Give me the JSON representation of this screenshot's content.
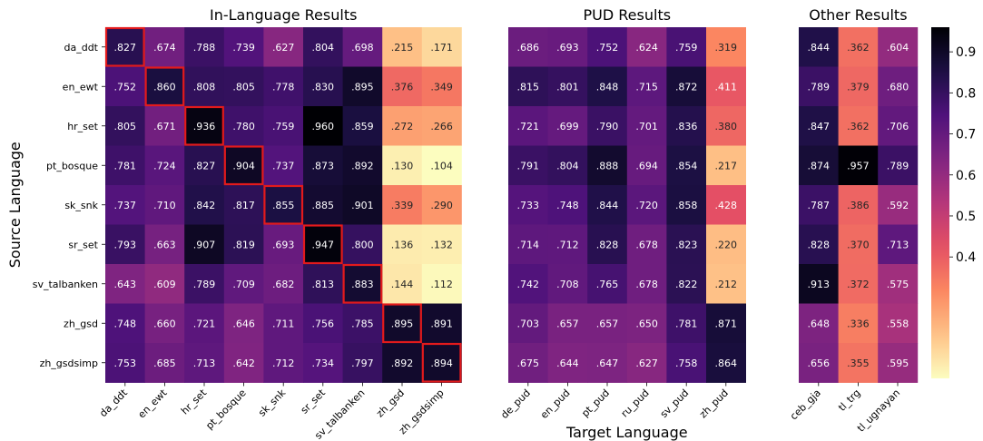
{
  "chart_data": {
    "type": "heatmap",
    "xlabel": "Target Language",
    "ylabel": "Source Language",
    "colormap": "magma_r",
    "value_range": [
      0.104,
      0.96
    ],
    "rows": [
      "da_ddt",
      "en_ewt",
      "hr_set",
      "pt_bosque",
      "sk_snk",
      "sr_set",
      "sv_talbanken",
      "zh_gsd",
      "zh_gsdsimp"
    ],
    "panels": [
      {
        "title": "In-Language Results",
        "columns": [
          "da_ddt",
          "en_ewt",
          "hr_set",
          "pt_bosque",
          "sk_snk",
          "sr_set",
          "sv_talbanken",
          "zh_gsd",
          "zh_gsdsimp"
        ],
        "values": [
          [
            0.827,
            0.674,
            0.788,
            0.739,
            0.627,
            0.804,
            0.698,
            0.215,
            0.171
          ],
          [
            0.752,
            0.86,
            0.808,
            0.805,
            0.778,
            0.83,
            0.895,
            0.376,
            0.349
          ],
          [
            0.805,
            0.671,
            0.936,
            0.78,
            0.759,
            0.96,
            0.859,
            0.272,
            0.266
          ],
          [
            0.781,
            0.724,
            0.827,
            0.904,
            0.737,
            0.873,
            0.892,
            0.13,
            0.104
          ],
          [
            0.737,
            0.71,
            0.842,
            0.817,
            0.855,
            0.885,
            0.901,
            0.339,
            0.29
          ],
          [
            0.793,
            0.663,
            0.907,
            0.819,
            0.693,
            0.947,
            0.8,
            0.136,
            0.132
          ],
          [
            0.643,
            0.609,
            0.789,
            0.709,
            0.682,
            0.813,
            0.883,
            0.144,
            0.112
          ],
          [
            0.748,
            0.66,
            0.721,
            0.646,
            0.711,
            0.756,
            0.785,
            0.895,
            0.891
          ],
          [
            0.753,
            0.685,
            0.713,
            0.642,
            0.712,
            0.734,
            0.797,
            0.892,
            0.894
          ]
        ],
        "labels": [
          [
            ".827",
            ".674",
            ".788",
            ".739",
            ".627",
            ".804",
            ".698",
            ".215",
            ".171"
          ],
          [
            ".752",
            ".860",
            ".808",
            ".805",
            ".778",
            ".830",
            ".895",
            ".376",
            ".349"
          ],
          [
            ".805",
            ".671",
            ".936",
            ".780",
            ".759",
            ".960",
            ".859",
            ".272",
            ".266"
          ],
          [
            ".781",
            ".724",
            ".827",
            ".904",
            ".737",
            ".873",
            ".892",
            ".130",
            ".104"
          ],
          [
            ".737",
            ".710",
            ".842",
            ".817",
            ".855",
            ".885",
            ".901",
            ".339",
            ".290"
          ],
          [
            ".793",
            ".663",
            ".907",
            ".819",
            ".693",
            ".947",
            ".800",
            ".136",
            ".132"
          ],
          [
            ".643",
            ".609",
            ".789",
            ".709",
            ".682",
            ".813",
            ".883",
            ".144",
            ".112"
          ],
          [
            ".748",
            ".660",
            ".721",
            ".646",
            ".711",
            ".756",
            ".785",
            ".895",
            ".891"
          ],
          [
            ".753",
            ".685",
            ".713",
            ".642",
            ".712",
            ".734",
            ".797",
            ".892",
            ".894"
          ]
        ],
        "highlight_diagonal": true,
        "highlight_color": "#e31a1c"
      },
      {
        "title": "PUD Results",
        "columns": [
          "de_pud",
          "en_pud",
          "pt_pud",
          "ru_pud",
          "sv_pud",
          "zh_pud"
        ],
        "values": [
          [
            0.686,
            0.693,
            0.752,
            0.624,
            0.759,
            0.319
          ],
          [
            0.815,
            0.801,
            0.848,
            0.715,
            0.872,
            0.411
          ],
          [
            0.721,
            0.699,
            0.79,
            0.701,
            0.836,
            0.38
          ],
          [
            0.791,
            0.804,
            0.888,
            0.694,
            0.854,
            0.217
          ],
          [
            0.733,
            0.748,
            0.844,
            0.72,
            0.858,
            0.428
          ],
          [
            0.714,
            0.712,
            0.828,
            0.678,
            0.823,
            0.22
          ],
          [
            0.742,
            0.708,
            0.765,
            0.678,
            0.822,
            0.212
          ],
          [
            0.703,
            0.657,
            0.657,
            0.65,
            0.781,
            0.871
          ],
          [
            0.675,
            0.644,
            0.647,
            0.627,
            0.758,
            0.864
          ]
        ],
        "labels": [
          [
            ".686",
            ".693",
            ".752",
            ".624",
            ".759",
            ".319"
          ],
          [
            ".815",
            ".801",
            ".848",
            ".715",
            ".872",
            ".411"
          ],
          [
            ".721",
            ".699",
            ".790",
            ".701",
            ".836",
            ".380"
          ],
          [
            ".791",
            ".804",
            ".888",
            ".694",
            ".854",
            ".217"
          ],
          [
            ".733",
            ".748",
            ".844",
            ".720",
            ".858",
            ".428"
          ],
          [
            ".714",
            ".712",
            ".828",
            ".678",
            ".823",
            ".220"
          ],
          [
            ".742",
            ".708",
            ".765",
            ".678",
            ".822",
            ".212"
          ],
          [
            ".703",
            ".657",
            ".657",
            ".650",
            ".781",
            ".871"
          ],
          [
            ".675",
            ".644",
            ".647",
            ".627",
            ".758",
            ".864"
          ]
        ],
        "highlight_diagonal": false
      },
      {
        "title": "Other Results",
        "columns": [
          "ceb_gja",
          "tl_trg",
          "tl_ugnayan"
        ],
        "values": [
          [
            0.844,
            0.362,
            0.604
          ],
          [
            0.789,
            0.379,
            0.68
          ],
          [
            0.847,
            0.362,
            0.706
          ],
          [
            0.874,
            0.957,
            0.789
          ],
          [
            0.787,
            0.386,
            0.592
          ],
          [
            0.828,
            0.37,
            0.713
          ],
          [
            0.913,
            0.372,
            0.575
          ],
          [
            0.648,
            0.336,
            0.558
          ],
          [
            0.656,
            0.355,
            0.595
          ]
        ],
        "labels": [
          [
            ".844",
            ".362",
            ".604"
          ],
          [
            ".789",
            ".379",
            ".680"
          ],
          [
            ".847",
            ".362",
            ".706"
          ],
          [
            ".874",
            ".957",
            ".789"
          ],
          [
            ".787",
            ".386",
            ".592"
          ],
          [
            ".828",
            ".370",
            ".713"
          ],
          [
            ".913",
            ".372",
            ".575"
          ],
          [
            ".648",
            ".336",
            ".558"
          ],
          [
            ".656",
            ".355",
            ".595"
          ]
        ],
        "highlight_diagonal": false
      }
    ],
    "colorbar": {
      "ticks": [
        0.4,
        0.5,
        0.6,
        0.7,
        0.8,
        0.9
      ],
      "tick_labels": [
        "0.4",
        "0.5",
        "0.6",
        "0.7",
        "0.8",
        "0.9"
      ]
    }
  }
}
